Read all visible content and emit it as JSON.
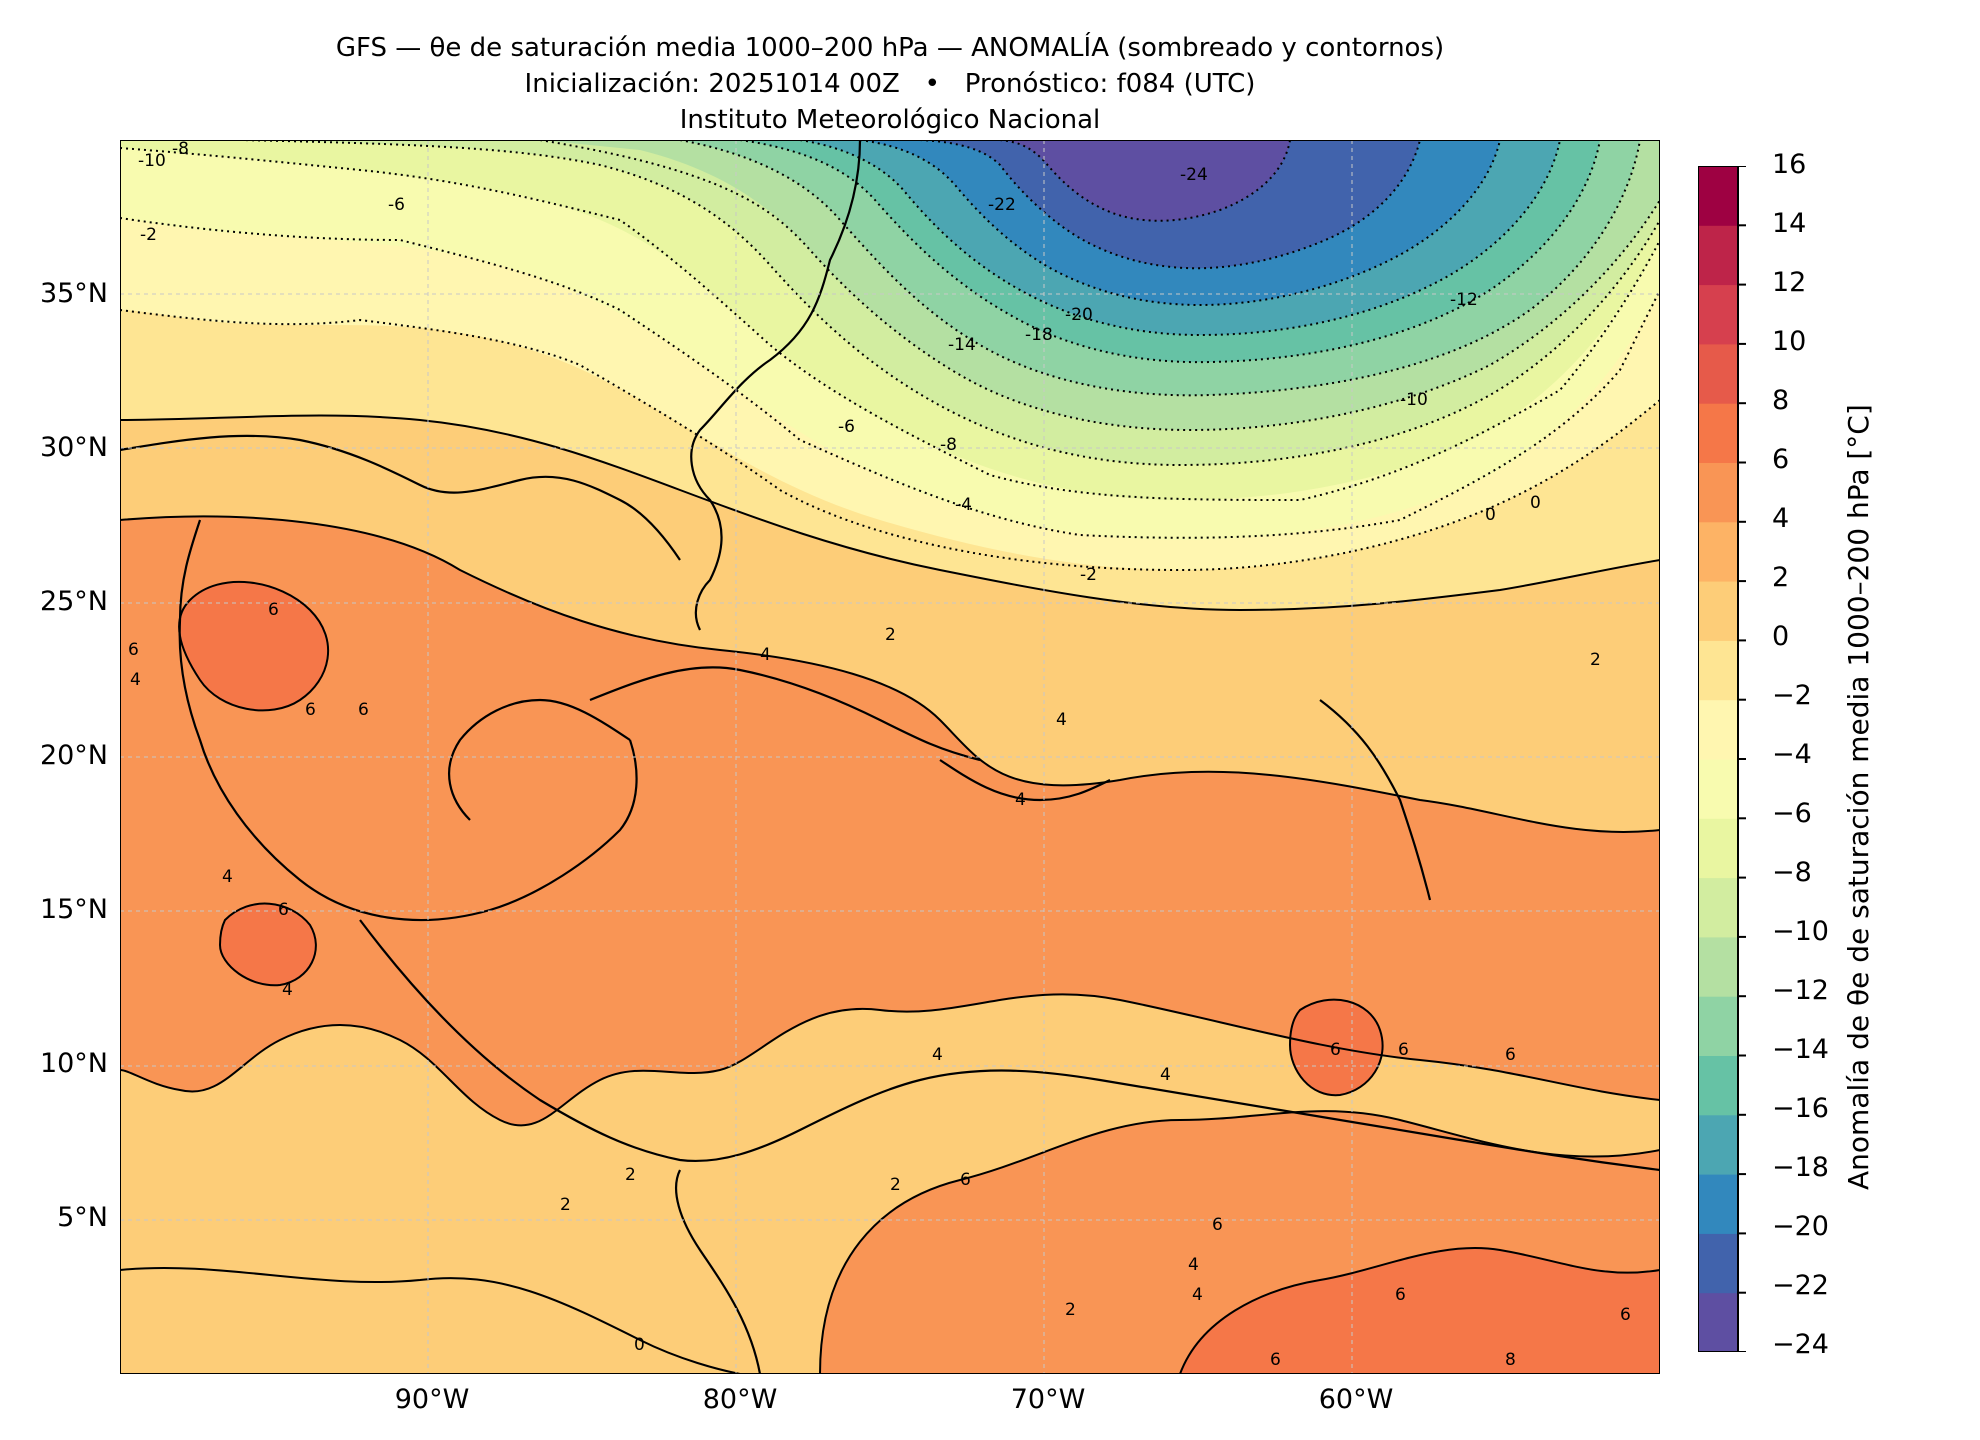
{
  "title": {
    "line1": "GFS — θe de saturación media 1000–200 hPa — ANOMALÍA (sombreado y contornos)",
    "line2": "Inicialización: 20251014 00Z   •   Pronóstico: f084 (UTC)",
    "line3": "Instituto Meteorológico Nacional"
  },
  "map": {
    "lat_labels": [
      "35°N",
      "30°N",
      "25°N",
      "20°N",
      "15°N",
      "10°N",
      "5°N"
    ],
    "lon_labels": [
      "90°W",
      "80°W",
      "70°W",
      "60°W"
    ],
    "extent": {
      "lon_min": -100,
      "lon_max": -50,
      "lat_min": 0,
      "lat_max": 40
    },
    "contour_labels": [
      "-10",
      "-8",
      "-6",
      "-2",
      "-22",
      "-24",
      "-20",
      "-18",
      "-14",
      "-12",
      "-10",
      "-6",
      "-8",
      "-4",
      "-2",
      "0",
      "0",
      "2",
      "2",
      "4",
      "4",
      "6",
      "6",
      "6",
      "6",
      "4",
      "4",
      "4",
      "6",
      "4",
      "2",
      "2",
      "0",
      "4",
      "6",
      "4",
      "6",
      "4",
      "6",
      "2",
      "4",
      "6",
      "6",
      "8",
      "6",
      "6",
      "6",
      "2"
    ]
  },
  "colorbar": {
    "title": "Anomalía de θe de saturación media 1000–200 hPa [°C]",
    "tick_labels": [
      "16",
      "14",
      "12",
      "10",
      "8",
      "6",
      "4",
      "2",
      "0",
      "−2",
      "−4",
      "−6",
      "−8",
      "−10",
      "−12",
      "−14",
      "−16",
      "−18",
      "−20",
      "−22",
      "−24"
    ],
    "colors": [
      "#5e4fa2",
      "#4163ac",
      "#3288bd",
      "#4ca6b2",
      "#66c2a5",
      "#8fd3a4",
      "#b4e0a2",
      "#d2eda0",
      "#e9f6a1",
      "#f8fbaf",
      "#fff6b0",
      "#fee593",
      "#fdcd78",
      "#fdb365",
      "#f99555",
      "#f57748",
      "#e65a4a",
      "#d6404e",
      "#be2449",
      "#9e0142"
    ]
  }
}
